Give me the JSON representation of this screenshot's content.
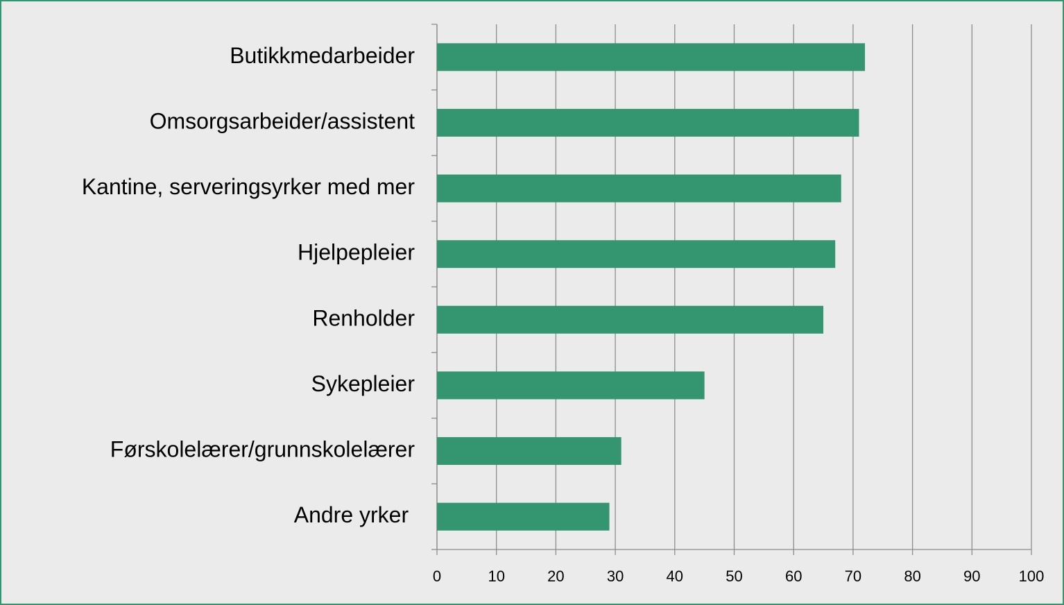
{
  "chart_data": {
    "type": "barh",
    "categories": [
      "Butikkmedarbeider",
      "Omsorgsarbeider/assistent",
      "Kantine, serveringsyrker med mer",
      "Hjelpepleier",
      "Renholder",
      "Sykepleier",
      "Førskolelærer/grunnskolelærer",
      "Andre yrker "
    ],
    "values": [
      72,
      71,
      68,
      67,
      65,
      45,
      31,
      29
    ],
    "color": "#339670",
    "xlim": [
      0,
      100
    ],
    "xticks": [
      0,
      10,
      20,
      30,
      40,
      50,
      60,
      70,
      80,
      90,
      100
    ],
    "grid": true
  }
}
